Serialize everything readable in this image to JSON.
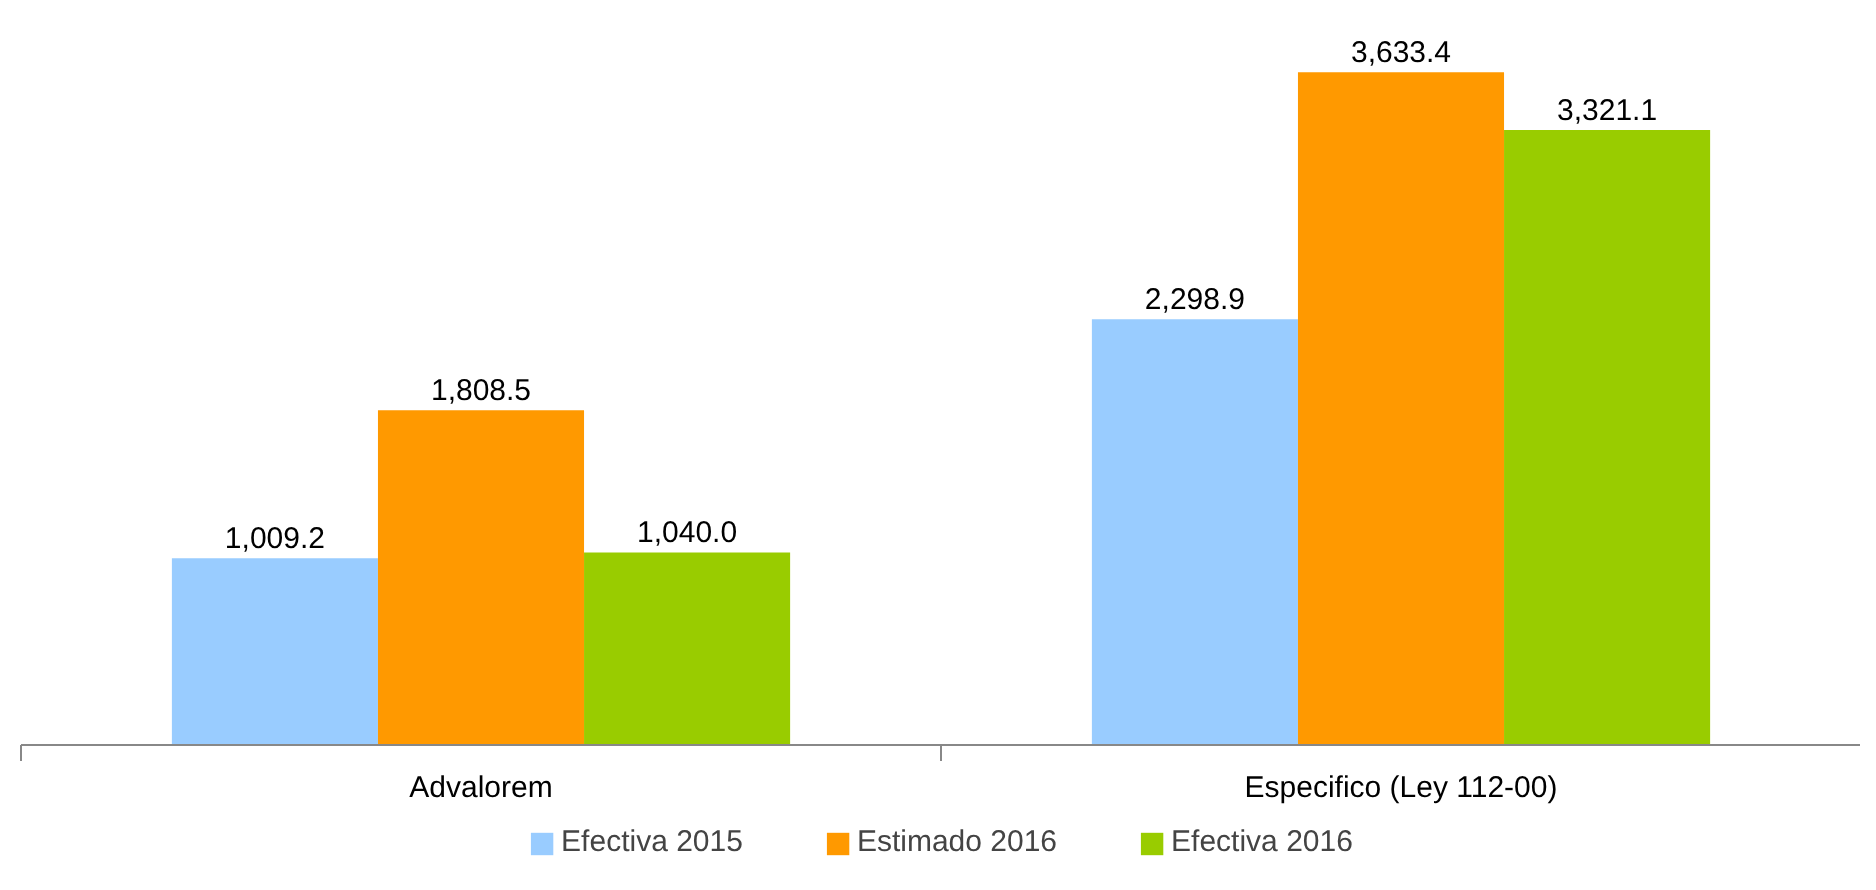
{
  "chart_data": {
    "type": "bar",
    "categories": [
      "Advalorem",
      "Especifico (Ley 112-00)"
    ],
    "series": [
      {
        "name": "Efectiva 2015",
        "color": "#99ccff",
        "values": [
          1009.2,
          2298.9
        ],
        "value_labels": [
          "1,009.2",
          "2,298.9"
        ]
      },
      {
        "name": "Estimado 2016",
        "color": "#ff9900",
        "values": [
          1808.5,
          3633.4
        ],
        "value_labels": [
          "1,808.5",
          "3,633.4"
        ]
      },
      {
        "name": "Efectiva 2016",
        "color": "#99cc00",
        "values": [
          1040.0,
          3321.1
        ],
        "value_labels": [
          "1,040.0",
          "3,321.1"
        ]
      }
    ],
    "legend": "bottom"
  }
}
